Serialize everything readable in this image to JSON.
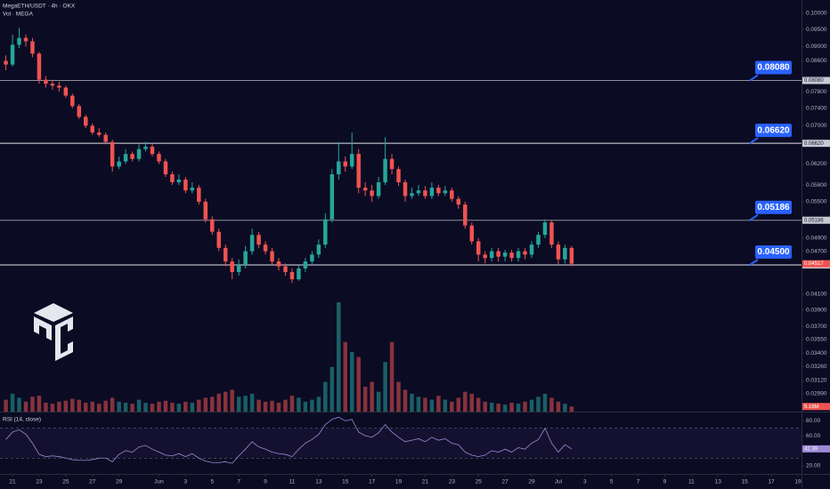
{
  "chart_data": {
    "type": "candlestick",
    "title": "MegaETH/USDT · 4h · OKX",
    "volume_title": "Vol · MEGA",
    "rsi_title": "RSI (14, close)",
    "log_scale": true,
    "grid": false,
    "up_color": "#26a69a",
    "down_color": "#ef5350",
    "x": [
      -0.5,
      0,
      0.5,
      1,
      1.5,
      2,
      2.5,
      3,
      3.5,
      4,
      4.5,
      5,
      5.5,
      6,
      6.5,
      7,
      7.5,
      8,
      8.5,
      9,
      9.5,
      10,
      10.5,
      11,
      11.5,
      12,
      12.5,
      13,
      13.5,
      14,
      14.5,
      15,
      15.5,
      16,
      16.5,
      17,
      17.5,
      18,
      18.5,
      19,
      19.5,
      20,
      20.5,
      21,
      21.5,
      22,
      22.5,
      23,
      23.5,
      24,
      24.5,
      25,
      25.5,
      26,
      26.5,
      27,
      27.5,
      28,
      28.5,
      29,
      29.5,
      30,
      30.5,
      31,
      31.5,
      32,
      32.5,
      33,
      33.5,
      34,
      34.5,
      35,
      35.5,
      36,
      36.5,
      37,
      37.5,
      38,
      38.5,
      39,
      39.5,
      40,
      40.5,
      41,
      41.5,
      42
    ],
    "xlim": [
      -0.94,
      59.27
    ],
    "xticks": [
      {
        "value": 0,
        "label": "21"
      },
      {
        "value": 2,
        "label": "23"
      },
      {
        "value": 4,
        "label": "25"
      },
      {
        "value": 6,
        "label": "27"
      },
      {
        "value": 8,
        "label": "29"
      },
      {
        "value": 11,
        "label": "Jun"
      },
      {
        "value": 13,
        "label": "3"
      },
      {
        "value": 15,
        "label": "5"
      },
      {
        "value": 17,
        "label": "7"
      },
      {
        "value": 19,
        "label": "9"
      },
      {
        "value": 21,
        "label": "11"
      },
      {
        "value": 23,
        "label": "13"
      },
      {
        "value": 25,
        "label": "15"
      },
      {
        "value": 27,
        "label": "17"
      },
      {
        "value": 29,
        "label": "19"
      },
      {
        "value": 31,
        "label": "21"
      },
      {
        "value": 33,
        "label": "23"
      },
      {
        "value": 35,
        "label": "25"
      },
      {
        "value": 37,
        "label": "27"
      },
      {
        "value": 39,
        "label": "29"
      },
      {
        "value": 41,
        "label": "Jul"
      },
      {
        "value": 43,
        "label": "3"
      },
      {
        "value": 45,
        "label": "5"
      },
      {
        "value": 47,
        "label": "7"
      },
      {
        "value": 49,
        "label": "9"
      },
      {
        "value": 51,
        "label": "11"
      },
      {
        "value": 53,
        "label": "13"
      },
      {
        "value": 55,
        "label": "15"
      },
      {
        "value": 57,
        "label": "17"
      },
      {
        "value": 59,
        "label": "19"
      }
    ],
    "open": [
      0.086,
      0.085,
      0.0905,
      0.0925,
      0.0915,
      0.088,
      0.081,
      0.08,
      0.0795,
      0.079,
      0.077,
      0.0745,
      0.072,
      0.07,
      0.0685,
      0.068,
      0.0665,
      0.0615,
      0.0625,
      0.064,
      0.063,
      0.065,
      0.0655,
      0.064,
      0.0625,
      0.06,
      0.0585,
      0.059,
      0.057,
      0.0575,
      0.055,
      0.052,
      0.05,
      0.0475,
      0.0455,
      0.044,
      0.045,
      0.047,
      0.0495,
      0.048,
      0.047,
      0.0455,
      0.0448,
      0.044,
      0.043,
      0.0445,
      0.0455,
      0.0465,
      0.048,
      0.052,
      0.06,
      0.0625,
      0.0615,
      0.064,
      0.0575,
      0.057,
      0.056,
      0.0585,
      0.063,
      0.061,
      0.0585,
      0.056,
      0.0565,
      0.057,
      0.056,
      0.0575,
      0.0565,
      0.057,
      0.0555,
      0.0545,
      0.051,
      0.0485,
      0.0465,
      0.046,
      0.047,
      0.0462,
      0.0468,
      0.046,
      0.047,
      0.0465,
      0.048,
      0.0495,
      0.0515,
      0.048,
      0.0458,
      0.0475
    ],
    "high": [
      0.0875,
      0.0935,
      0.0955,
      0.0935,
      0.0925,
      0.0885,
      0.082,
      0.081,
      0.0805,
      0.0795,
      0.0775,
      0.075,
      0.0725,
      0.0705,
      0.0695,
      0.0685,
      0.067,
      0.0635,
      0.065,
      0.0645,
      0.066,
      0.0665,
      0.066,
      0.0645,
      0.063,
      0.0605,
      0.06,
      0.0595,
      0.0585,
      0.058,
      0.0555,
      0.0525,
      0.0505,
      0.048,
      0.046,
      0.0458,
      0.0478,
      0.0505,
      0.05,
      0.0485,
      0.0475,
      0.046,
      0.0452,
      0.0445,
      0.045,
      0.046,
      0.047,
      0.0488,
      0.053,
      0.061,
      0.0665,
      0.0635,
      0.0685,
      0.065,
      0.0585,
      0.058,
      0.0595,
      0.0675,
      0.064,
      0.0615,
      0.059,
      0.0575,
      0.058,
      0.0578,
      0.0585,
      0.058,
      0.0578,
      0.0575,
      0.056,
      0.055,
      0.0515,
      0.049,
      0.047,
      0.0475,
      0.0475,
      0.0472,
      0.0472,
      0.0475,
      0.0475,
      0.0485,
      0.05,
      0.052,
      0.0518,
      0.0485,
      0.048,
      0.0478
    ],
    "low": [
      0.0835,
      0.0845,
      0.0895,
      0.09,
      0.087,
      0.08,
      0.079,
      0.0785,
      0.078,
      0.0765,
      0.074,
      0.0715,
      0.0695,
      0.068,
      0.0675,
      0.066,
      0.0605,
      0.061,
      0.062,
      0.0625,
      0.0625,
      0.0645,
      0.0635,
      0.062,
      0.0595,
      0.058,
      0.058,
      0.0565,
      0.0565,
      0.0545,
      0.0515,
      0.0495,
      0.047,
      0.0448,
      0.043,
      0.0435,
      0.0445,
      0.0465,
      0.0475,
      0.0465,
      0.045,
      0.0442,
      0.0435,
      0.0425,
      0.0428,
      0.044,
      0.045,
      0.046,
      0.0475,
      0.0515,
      0.059,
      0.0605,
      0.061,
      0.0565,
      0.056,
      0.055,
      0.0555,
      0.058,
      0.06,
      0.0578,
      0.055,
      0.0555,
      0.056,
      0.0555,
      0.0555,
      0.056,
      0.056,
      0.055,
      0.0538,
      0.0505,
      0.048,
      0.0455,
      0.0452,
      0.0455,
      0.0455,
      0.0455,
      0.0455,
      0.0455,
      0.0458,
      0.046,
      0.0475,
      0.049,
      0.0475,
      0.045,
      0.0452,
      0.0448
    ],
    "close": [
      0.085,
      0.0905,
      0.0925,
      0.0915,
      0.088,
      0.081,
      0.08,
      0.0795,
      0.079,
      0.077,
      0.0745,
      0.072,
      0.07,
      0.0685,
      0.068,
      0.0665,
      0.0615,
      0.0625,
      0.064,
      0.063,
      0.065,
      0.0655,
      0.064,
      0.0625,
      0.06,
      0.0585,
      0.059,
      0.057,
      0.0575,
      0.055,
      0.052,
      0.05,
      0.0475,
      0.0455,
      0.044,
      0.045,
      0.047,
      0.0495,
      0.048,
      0.047,
      0.0455,
      0.0448,
      0.044,
      0.043,
      0.0445,
      0.0455,
      0.0465,
      0.048,
      0.052,
      0.06,
      0.0625,
      0.0615,
      0.064,
      0.0575,
      0.057,
      0.056,
      0.0585,
      0.063,
      0.061,
      0.0585,
      0.056,
      0.0565,
      0.057,
      0.056,
      0.0575,
      0.0565,
      0.057,
      0.0555,
      0.0545,
      0.051,
      0.0485,
      0.0465,
      0.046,
      0.047,
      0.0462,
      0.0468,
      0.046,
      0.047,
      0.0465,
      0.048,
      0.0495,
      0.0515,
      0.048,
      0.0458,
      0.0475,
      0.04517
    ],
    "ylim": [
      0.02865,
      0.1
    ],
    "yticks": [
      {
        "value": 0.1,
        "label": "0.10000"
      },
      {
        "value": 0.095,
        "label": "0.09500"
      },
      {
        "value": 0.09,
        "label": "0.09000"
      },
      {
        "value": 0.086,
        "label": "0.08600"
      },
      {
        "value": 0.078,
        "label": "0.07800"
      },
      {
        "value": 0.074,
        "label": "0.07400"
      },
      {
        "value": 0.07,
        "label": "0.07000"
      },
      {
        "value": 0.062,
        "label": "0.06200"
      },
      {
        "value": 0.058,
        "label": "0.05800"
      },
      {
        "value": 0.055,
        "label": "0.05500"
      },
      {
        "value": 0.049,
        "label": "0.04900"
      },
      {
        "value": 0.047,
        "label": "0.04700"
      },
      {
        "value": 0.041,
        "label": "0.04100"
      },
      {
        "value": 0.039,
        "label": "0.03900"
      },
      {
        "value": 0.037,
        "label": "0.03700"
      },
      {
        "value": 0.0355,
        "label": "0.03550"
      },
      {
        "value": 0.034,
        "label": "0.03400"
      },
      {
        "value": 0.0326,
        "label": "0.03260"
      },
      {
        "value": 0.0312,
        "label": "0.03120"
      },
      {
        "value": 0.0299,
        "label": "0.02990"
      },
      {
        "value": 0.02865,
        "label": "0.02865"
      }
    ],
    "levels": [
      {
        "value": 0.0808,
        "label": "0.08080",
        "color": "#8c8f9c"
      },
      {
        "value": 0.0662,
        "label": "0.06620",
        "color": "#e0e3eb"
      },
      {
        "value": 0.05186,
        "label": "0.05186",
        "color": "#8c8f9c"
      },
      {
        "value": 0.045,
        "label": "0.04500",
        "color": "#e0e3eb"
      }
    ],
    "level_box_color": "#2962ff",
    "volume": [
      12,
      18,
      14,
      10,
      15,
      16,
      9,
      8,
      10,
      11,
      13,
      12,
      9,
      10,
      8,
      11,
      14,
      10,
      9,
      8,
      12,
      9,
      8,
      10,
      11,
      9,
      8,
      10,
      9,
      12,
      14,
      15,
      18,
      20,
      22,
      15,
      16,
      18,
      12,
      10,
      11,
      9,
      12,
      16,
      14,
      10,
      12,
      15,
      30,
      45,
      110,
      70,
      60,
      55,
      25,
      30,
      20,
      50,
      70,
      30,
      22,
      18,
      15,
      14,
      12,
      16,
      12,
      10,
      14,
      20,
      18,
      14,
      10,
      9,
      8,
      7,
      9,
      8,
      10,
      12,
      15,
      18,
      14,
      10,
      8,
      5.16
    ],
    "volume_value_labels_last": "5.16M",
    "rsi": [
      55,
      65,
      68,
      62,
      50,
      35,
      32,
      33,
      32,
      30,
      28,
      27,
      27,
      28,
      30,
      30,
      25,
      35,
      40,
      38,
      45,
      47,
      42,
      38,
      34,
      33,
      36,
      32,
      36,
      30,
      26,
      24,
      24,
      25,
      23,
      33,
      42,
      52,
      45,
      42,
      38,
      36,
      35,
      32,
      42,
      50,
      55,
      62,
      75,
      82,
      85,
      80,
      82,
      65,
      60,
      58,
      64,
      75,
      65,
      58,
      52,
      54,
      56,
      52,
      58,
      54,
      56,
      50,
      48,
      38,
      34,
      32,
      34,
      40,
      38,
      42,
      38,
      44,
      42,
      50,
      55,
      70,
      50,
      38,
      48,
      42.39
    ],
    "rsi_color": "#9c88d4",
    "rsi_ylim": [
      10,
      90
    ],
    "rsi_yticks": [
      {
        "value": 80,
        "label": "80.00"
      },
      {
        "value": 60,
        "label": "60.00"
      },
      {
        "value": 20,
        "label": "20.00"
      }
    ],
    "rsi_bands": [
      30,
      70
    ]
  }
}
